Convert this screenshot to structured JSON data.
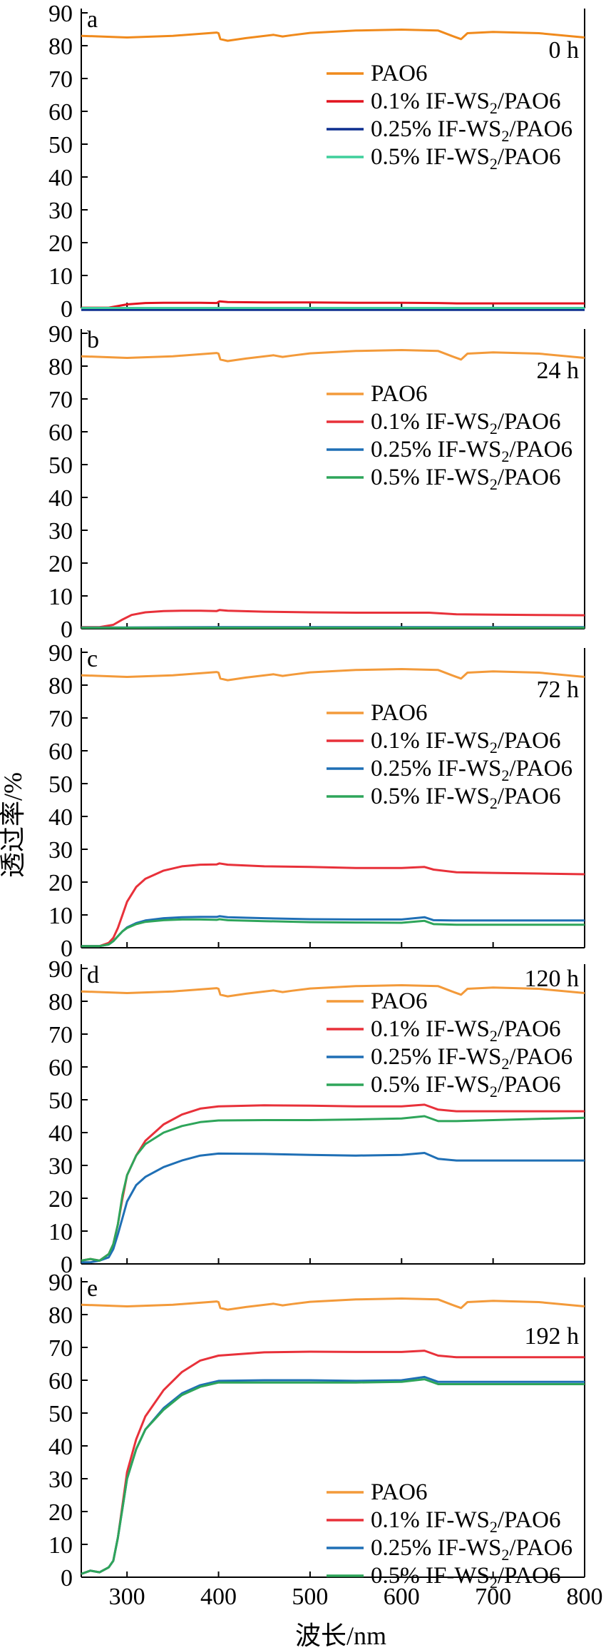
{
  "chart_data": {
    "type": "line",
    "xlabel": "波长/nm",
    "ylabel": "透过率/%",
    "xlim": [
      250,
      800
    ],
    "ylim": [
      0,
      90
    ],
    "x_ticks": [
      300,
      400,
      500,
      600,
      700,
      800
    ],
    "y_ticks": [
      0,
      10,
      20,
      30,
      40,
      50,
      60,
      70,
      80,
      90
    ],
    "legend_labels": [
      "PAO6",
      "0.1% IF-WS",
      "0.25% IF-WS",
      "0.5% IF-WS"
    ],
    "legend_suffix_sub": "2",
    "legend_suffix_tail": "/PAO6",
    "series_colors": [
      "#f39a3a",
      "#e8313a",
      "#1f6fb5",
      "#2ea55a"
    ],
    "panels": [
      {
        "letter": "a",
        "time": "0 h",
        "series_colors": [
          "#f08a1c",
          "#e2131f",
          "#0d2f8f",
          "#3fcf9b"
        ],
        "series": [
          {
            "name": "PAO6",
            "x": [
              250,
              300,
              350,
              398,
              400,
              402,
              410,
              430,
              460,
              470,
              480,
              500,
              550,
              600,
              640,
              655,
              665,
              672,
              700,
              750,
              800
            ],
            "y": [
              83,
              82.5,
              83,
              84,
              83.8,
              82,
              81.5,
              82.3,
              83.3,
              82.8,
              83.2,
              83.9,
              84.6,
              84.9,
              84.6,
              83,
              82,
              83.8,
              84.2,
              83.8,
              82.5
            ]
          },
          {
            "name": "0.1% IF-WS2/PAO6",
            "x": [
              250,
              280,
              300,
              320,
              340,
              380,
              398,
              401,
              410,
              450,
              500,
              550,
              600,
              640,
              660,
              700,
              750,
              800
            ],
            "y": [
              0.2,
              0.2,
              1.2,
              1.6,
              1.7,
              1.7,
              1.6,
              2.1,
              1.9,
              1.8,
              1.8,
              1.7,
              1.7,
              1.6,
              1.5,
              1.5,
              1.5,
              1.5
            ]
          },
          {
            "name": "0.25% IF-WS2/PAO6",
            "x": [
              250,
              400,
              500,
              600,
              700,
              800
            ],
            "y": [
              -0.5,
              -0.5,
              -0.5,
              -0.5,
              -0.5,
              -0.5
            ]
          },
          {
            "name": "0.5% IF-WS2/PAO6",
            "x": [
              250,
              400,
              500,
              600,
              700,
              800
            ],
            "y": [
              0.1,
              0.1,
              0.1,
              0.1,
              0.1,
              0.1
            ]
          }
        ]
      },
      {
        "letter": "b",
        "time": "24 h",
        "series": [
          {
            "name": "PAO6",
            "x": [
              250,
              300,
              350,
              398,
              400,
              402,
              410,
              430,
              460,
              470,
              480,
              500,
              550,
              600,
              640,
              655,
              665,
              672,
              700,
              750,
              800
            ],
            "y": [
              83,
              82.5,
              83,
              84,
              83.8,
              82,
              81.5,
              82.3,
              83.3,
              82.8,
              83.2,
              83.9,
              84.6,
              84.9,
              84.6,
              83,
              82,
              83.8,
              84.2,
              83.8,
              82.5
            ]
          },
          {
            "name": "0.1% IF-WS2/PAO6",
            "x": [
              250,
              270,
              285,
              295,
              305,
              320,
              340,
              360,
              380,
              398,
              401,
              410,
              450,
              500,
              550,
              600,
              630,
              660,
              700,
              750,
              800
            ],
            "y": [
              0.5,
              0.5,
              1.2,
              2.8,
              4.2,
              5.0,
              5.4,
              5.5,
              5.5,
              5.4,
              5.7,
              5.5,
              5.2,
              5.0,
              4.9,
              4.9,
              4.9,
              4.4,
              4.3,
              4.2,
              4.1
            ]
          },
          {
            "name": "0.25% IF-WS2/PAO6",
            "x": [
              250,
              300,
              400,
              500,
              600,
              700,
              800
            ],
            "y": [
              0.4,
              0.4,
              0.5,
              0.5,
              0.5,
              0.5,
              0.5
            ]
          },
          {
            "name": "0.5% IF-WS2/PAO6",
            "x": [
              250,
              300,
              400,
              500,
              600,
              700,
              800
            ],
            "y": [
              0.3,
              0.3,
              0.3,
              0.3,
              0.3,
              0.3,
              0.3
            ]
          }
        ]
      },
      {
        "letter": "c",
        "time": "72 h",
        "series": [
          {
            "name": "PAO6",
            "x": [
              250,
              300,
              350,
              398,
              400,
              402,
              410,
              430,
              460,
              470,
              480,
              500,
              550,
              600,
              640,
              655,
              665,
              672,
              700,
              750,
              800
            ],
            "y": [
              83,
              82.5,
              83,
              84,
              83.8,
              82,
              81.5,
              82.3,
              83.3,
              82.8,
              83.2,
              83.9,
              84.6,
              84.9,
              84.6,
              83,
              82,
              83.8,
              84.2,
              83.8,
              82.5
            ]
          },
          {
            "name": "0.1% IF-WS2/PAO6",
            "x": [
              250,
              270,
              280,
              285,
              290,
              295,
              300,
              310,
              320,
              340,
              360,
              380,
              398,
              401,
              410,
              450,
              500,
              550,
              600,
              625,
              635,
              660,
              700,
              750,
              800
            ],
            "y": [
              0.5,
              0.5,
              1.5,
              3,
              6,
              10,
              14,
              18.5,
              21,
              23.5,
              24.8,
              25.3,
              25.4,
              25.7,
              25.3,
              24.8,
              24.6,
              24.3,
              24.3,
              24.6,
              23.8,
              23,
              22.8,
              22.6,
              22.4
            ]
          },
          {
            "name": "0.25% IF-WS2/PAO6",
            "x": [
              250,
              270,
              280,
              285,
              290,
              295,
              300,
              310,
              320,
              340,
              360,
              380,
              398,
              401,
              410,
              450,
              500,
              550,
              600,
              625,
              635,
              660,
              700,
              750,
              800
            ],
            "y": [
              0.5,
              0.5,
              1,
              2,
              3.5,
              5,
              6.2,
              7.5,
              8.3,
              9.0,
              9.3,
              9.4,
              9.4,
              9.6,
              9.3,
              9.0,
              8.7,
              8.6,
              8.6,
              9.3,
              8.4,
              8.3,
              8.3,
              8.3,
              8.3
            ]
          },
          {
            "name": "0.5% IF-WS2/PAO6",
            "x": [
              250,
              270,
              280,
              285,
              290,
              295,
              300,
              310,
              320,
              340,
              360,
              380,
              398,
              401,
              410,
              450,
              500,
              550,
              600,
              625,
              635,
              660,
              700,
              750,
              800
            ],
            "y": [
              0.5,
              0.5,
              1,
              2,
              3.5,
              5,
              6,
              7.2,
              7.9,
              8.4,
              8.6,
              8.6,
              8.5,
              8.7,
              8.4,
              8.1,
              7.8,
              7.7,
              7.6,
              8.2,
              7.2,
              7.0,
              7.0,
              7.0,
              7.0
            ]
          }
        ]
      },
      {
        "letter": "d",
        "time": "120 h",
        "series": [
          {
            "name": "PAO6",
            "x": [
              250,
              300,
              350,
              398,
              400,
              402,
              410,
              430,
              460,
              470,
              480,
              500,
              550,
              600,
              640,
              655,
              665,
              672,
              700,
              750,
              800
            ],
            "y": [
              83,
              82.5,
              83,
              84,
              83.8,
              82,
              81.5,
              82.3,
              83.3,
              82.8,
              83.2,
              83.9,
              84.6,
              84.9,
              84.6,
              83,
              82,
              83.8,
              84.2,
              83.8,
              82.5
            ]
          },
          {
            "name": "0.1% IF-WS2/PAO6",
            "x": [
              250,
              260,
              270,
              280,
              285,
              290,
              295,
              300,
              310,
              320,
              340,
              360,
              380,
              400,
              450,
              500,
              550,
              600,
              625,
              640,
              660,
              700,
              750,
              800
            ],
            "y": [
              1,
              1.5,
              1,
              3,
              6,
              12,
              20,
              27,
              33,
              37.5,
              42.5,
              45.5,
              47.3,
              48,
              48.3,
              48.2,
              48,
              48,
              48.5,
              47,
              46.5,
              46.5,
              46.5,
              46.5
            ]
          },
          {
            "name": "0.25% IF-WS2/PAO6",
            "x": [
              250,
              260,
              270,
              280,
              285,
              290,
              295,
              300,
              310,
              320,
              340,
              360,
              380,
              400,
              450,
              500,
              550,
              600,
              625,
              640,
              660,
              700,
              750,
              800
            ],
            "y": [
              0.5,
              0.5,
              1,
              2,
              4.5,
              9,
              14,
              19,
              24,
              26.5,
              29.5,
              31.5,
              33,
              33.6,
              33.5,
              33.2,
              33,
              33.2,
              33.8,
              32,
              31.5,
              31.5,
              31.5,
              31.5
            ]
          },
          {
            "name": "0.5% IF-WS2/PAO6",
            "x": [
              250,
              260,
              270,
              280,
              285,
              290,
              295,
              300,
              310,
              320,
              340,
              360,
              380,
              400,
              450,
              500,
              550,
              600,
              625,
              640,
              660,
              700,
              750,
              800
            ],
            "y": [
              1,
              1.5,
              1,
              3,
              6,
              12,
              21,
              27,
              33,
              36.5,
              40,
              42,
              43.2,
              43.7,
              43.8,
              43.8,
              44,
              44.3,
              45,
              43.5,
              43.5,
              43.8,
              44.2,
              44.5
            ]
          }
        ]
      },
      {
        "letter": "e",
        "time": "192 h",
        "series": [
          {
            "name": "PAO6",
            "x": [
              250,
              300,
              350,
              398,
              400,
              402,
              410,
              430,
              460,
              470,
              480,
              500,
              550,
              600,
              640,
              655,
              665,
              672,
              700,
              750,
              800
            ],
            "y": [
              83,
              82.5,
              83,
              84,
              83.8,
              82,
              81.5,
              82.3,
              83.3,
              82.8,
              83.2,
              83.9,
              84.6,
              84.9,
              84.6,
              83,
              82,
              83.8,
              84.2,
              83.8,
              82.5
            ]
          },
          {
            "name": "0.1% IF-WS2/PAO6",
            "x": [
              250,
              260,
              270,
              280,
              285,
              290,
              295,
              300,
              310,
              320,
              340,
              360,
              380,
              400,
              450,
              500,
              550,
              600,
              625,
              640,
              660,
              700,
              750,
              800
            ],
            "y": [
              1,
              2,
              1.5,
              3,
              5,
              12,
              22,
              32,
              42,
              49,
              57,
              62.5,
              66,
              67.5,
              68.5,
              68.7,
              68.6,
              68.6,
              69,
              67.5,
              67,
              67,
              67,
              67
            ]
          },
          {
            "name": "0.25% IF-WS2/PAO6",
            "x": [
              250,
              260,
              270,
              280,
              285,
              290,
              295,
              300,
              310,
              320,
              340,
              360,
              380,
              400,
              450,
              500,
              550,
              600,
              625,
              640,
              660,
              700,
              750,
              800
            ],
            "y": [
              1,
              2,
              1.5,
              3,
              5,
              12,
              21,
              30,
              39,
              45,
              51.5,
              56,
              58.5,
              59.8,
              60,
              60,
              59.8,
              60,
              61,
              59.5,
              59.5,
              59.5,
              59.5,
              59.5
            ]
          },
          {
            "name": "0.5% IF-WS2/PAO6",
            "x": [
              250,
              260,
              270,
              280,
              285,
              290,
              295,
              300,
              310,
              320,
              340,
              360,
              380,
              400,
              450,
              500,
              550,
              600,
              625,
              640,
              660,
              700,
              750,
              800
            ],
            "y": [
              1,
              2,
              1.5,
              3,
              5,
              12,
              21,
              30,
              39,
              45,
              51,
              55.5,
              58,
              59.3,
              59.3,
              59.3,
              59.3,
              59.5,
              60.3,
              58.8,
              58.8,
              58.8,
              58.8,
              58.8
            ]
          }
        ]
      }
    ]
  }
}
